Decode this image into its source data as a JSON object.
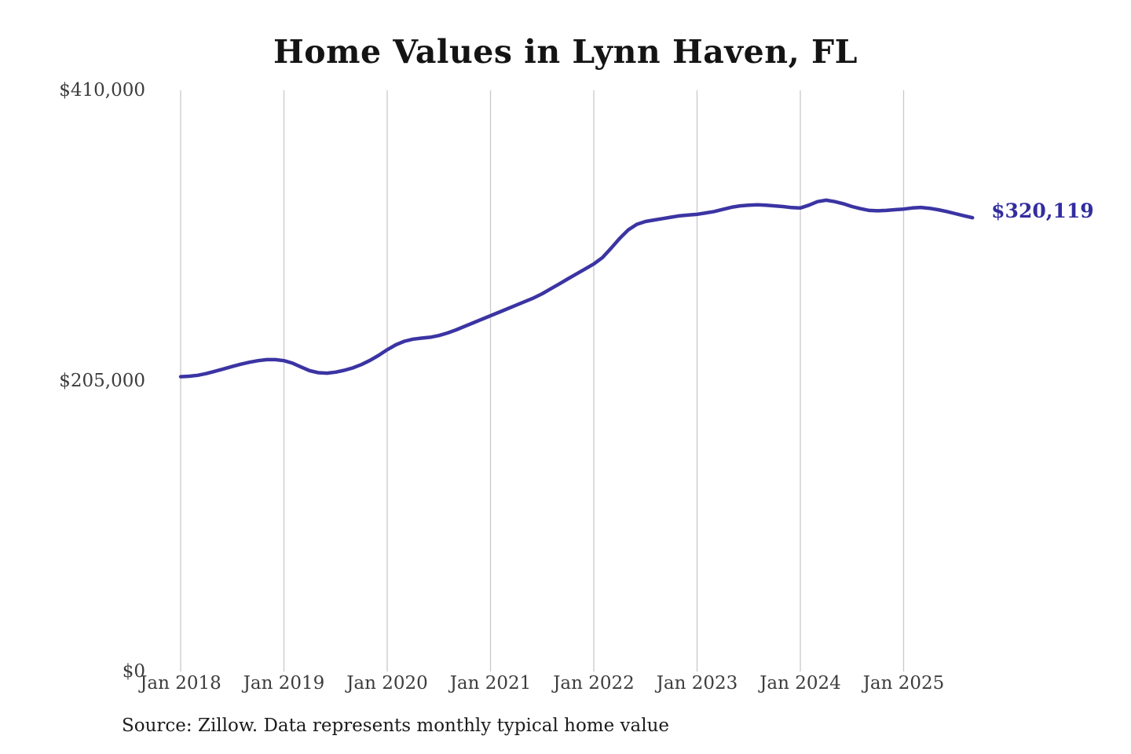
{
  "title": "Home Values in Lynn Haven, FL",
  "source_note": "Source: Zillow. Data represents monthly typical home value",
  "chart_data": {
    "type": "line",
    "title": "Home Values in Lynn Haven, FL",
    "unit": "USD",
    "ylim": [
      0,
      410000
    ],
    "grid": "vertical-only",
    "legend": "none",
    "line_color": "#3b34a3",
    "grid_color": "#c9c9c9",
    "background_color": "#ffffff",
    "y_ticks": [
      {
        "value": 410000,
        "label": "$410,000"
      },
      {
        "value": 205000,
        "label": "$205,000"
      },
      {
        "value": 0,
        "label": "$0"
      }
    ],
    "x_ticks": [
      {
        "month_index": 0,
        "label": "Jan 2018"
      },
      {
        "month_index": 12,
        "label": "Jan 2019"
      },
      {
        "month_index": 24,
        "label": "Jan 2020"
      },
      {
        "month_index": 36,
        "label": "Jan 2021"
      },
      {
        "month_index": 48,
        "label": "Jan 2022"
      },
      {
        "month_index": 60,
        "label": "Jan 2023"
      },
      {
        "month_index": 72,
        "label": "Jan 2024"
      },
      {
        "month_index": 84,
        "label": "Jan 2025"
      }
    ],
    "end_label": {
      "text": "$320,119",
      "color": "#322da0",
      "value": 320119
    },
    "x": [
      "Jan 2018",
      "Feb 2018",
      "Mar 2018",
      "Apr 2018",
      "May 2018",
      "Jun 2018",
      "Jul 2018",
      "Aug 2018",
      "Sep 2018",
      "Oct 2018",
      "Nov 2018",
      "Dec 2018",
      "Jan 2019",
      "Feb 2019",
      "Mar 2019",
      "Apr 2019",
      "May 2019",
      "Jun 2019",
      "Jul 2019",
      "Aug 2019",
      "Sep 2019",
      "Oct 2019",
      "Nov 2019",
      "Dec 2019",
      "Jan 2020",
      "Feb 2020",
      "Mar 2020",
      "Apr 2020",
      "May 2020",
      "Jun 2020",
      "Jul 2020",
      "Aug 2020",
      "Sep 2020",
      "Oct 2020",
      "Nov 2020",
      "Dec 2020",
      "Jan 2021",
      "Feb 2021",
      "Mar 2021",
      "Apr 2021",
      "May 2021",
      "Jun 2021",
      "Jul 2021",
      "Aug 2021",
      "Sep 2021",
      "Oct 2021",
      "Nov 2021",
      "Dec 2021",
      "Jan 2022",
      "Feb 2022",
      "Mar 2022",
      "Apr 2022",
      "May 2022",
      "Jun 2022",
      "Jul 2022",
      "Aug 2022",
      "Sep 2022",
      "Oct 2022",
      "Nov 2022",
      "Dec 2022",
      "Jan 2023",
      "Feb 2023",
      "Mar 2023",
      "Apr 2023",
      "May 2023",
      "Jun 2023",
      "Jul 2023",
      "Aug 2023",
      "Sep 2023",
      "Oct 2023",
      "Nov 2023",
      "Dec 2023",
      "Jan 2024",
      "Feb 2024",
      "Mar 2024",
      "Apr 2024",
      "May 2024",
      "Jun 2024",
      "Jul 2024",
      "Aug 2024",
      "Sep 2024",
      "Oct 2024",
      "Nov 2024",
      "Dec 2024",
      "Jan 2025",
      "Feb 2025",
      "Mar 2025",
      "Apr 2025",
      "May 2025",
      "Jun 2025",
      "Jul 2025",
      "Aug 2025",
      "Sep 2025"
    ],
    "values": [
      208000,
      208300,
      209000,
      210200,
      211800,
      213500,
      215200,
      216800,
      218200,
      219300,
      220000,
      220000,
      219300,
      217500,
      214800,
      212200,
      210800,
      210500,
      211200,
      212500,
      214200,
      216500,
      219500,
      223000,
      227000,
      230500,
      233000,
      234500,
      235200,
      235800,
      237000,
      238800,
      241000,
      243500,
      246000,
      248500,
      251000,
      253500,
      256000,
      258500,
      261000,
      263500,
      266500,
      270000,
      273500,
      277000,
      280500,
      284000,
      287500,
      292000,
      298500,
      305500,
      311500,
      315500,
      317500,
      318500,
      319500,
      320500,
      321500,
      322000,
      322500,
      323500,
      324500,
      326000,
      327500,
      328500,
      329000,
      329200,
      329000,
      328500,
      328000,
      327300,
      327000,
      329000,
      331500,
      332500,
      331500,
      330000,
      328000,
      326500,
      325300,
      325000,
      325300,
      325800,
      326200,
      327000,
      327400,
      326800,
      325800,
      324500,
      323000,
      321500,
      320119
    ]
  }
}
